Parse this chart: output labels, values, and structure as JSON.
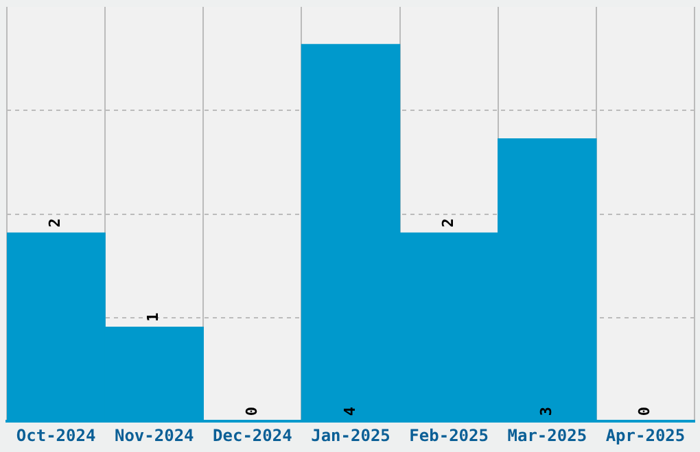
{
  "chart_data": {
    "type": "bar",
    "categories": [
      "Oct-2024",
      "Nov-2024",
      "Dec-2024",
      "Jan-2025",
      "Feb-2025",
      "Mar-2025",
      "Apr-2025"
    ],
    "values": [
      2,
      1,
      0,
      4,
      2,
      3,
      0
    ],
    "color": "#0099cc",
    "ylim": [
      0,
      4.4
    ],
    "yticks": [
      {
        "value": 1.1,
        "label": null
      },
      {
        "value": 2.2,
        "label": null
      },
      {
        "value": 3.3,
        "label": null
      }
    ],
    "tick_labels": "x",
    "grid": true,
    "data_labels": true
  }
}
